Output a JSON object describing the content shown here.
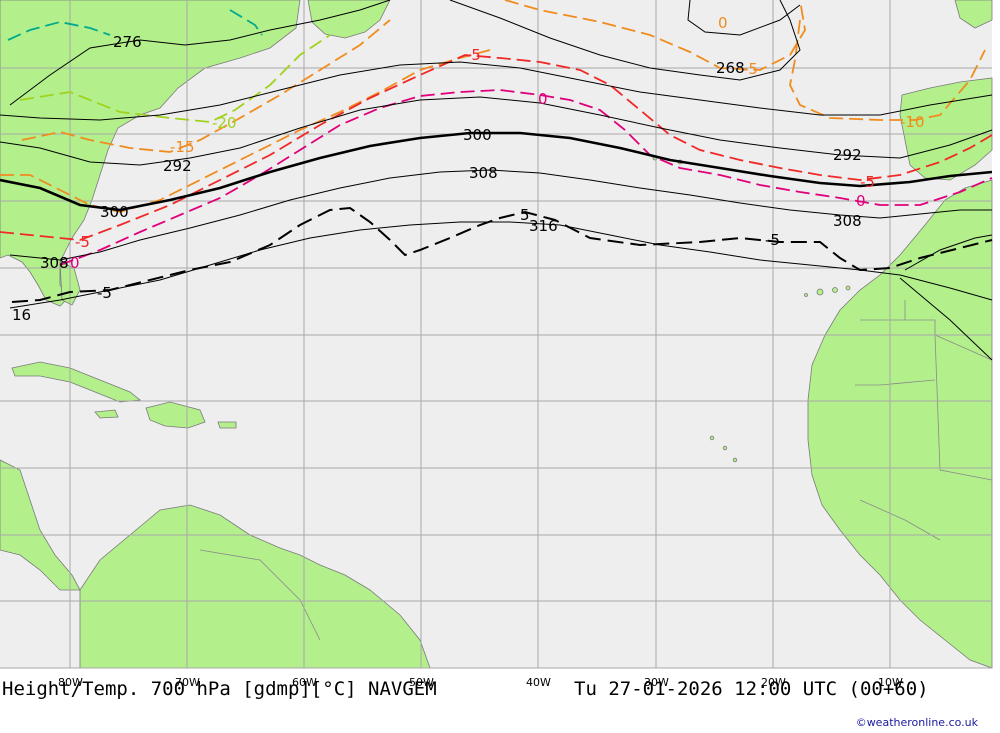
{
  "title": "Height/Temp. 700 hPa [gdmp][°C] NAVGEM",
  "valid_time": "Tu 27-01-2026 12:00 UTC (00+60)",
  "credit": "©weatheronline.co.uk",
  "colors": {
    "ocean": "#eeeeee",
    "land": "#b3f08c",
    "grid": "#a8a8a8",
    "height_contour": "#000000",
    "temp_0": "#e0007a",
    "temp_minus5": "#f02828",
    "temp_minus10_15": "#f08c1e",
    "temp_minus20": "#a0d21e",
    "temp_minus25": "#00aa8c"
  },
  "longitude_labels": [
    "80W",
    "70W",
    "60W",
    "50W",
    "40W",
    "30W",
    "20W",
    "10W"
  ],
  "height_contour_labels": [
    "276",
    "268",
    "292",
    "292",
    "300",
    "300",
    "308",
    "308",
    "308",
    "316",
    "16"
  ],
  "temperature_contour_labels": [
    "-20",
    "-15",
    "-10",
    "-5",
    "-5",
    "-5",
    "0",
    "0",
    "0",
    "-5",
    "-5",
    "-5",
    "5",
    "0"
  ]
}
